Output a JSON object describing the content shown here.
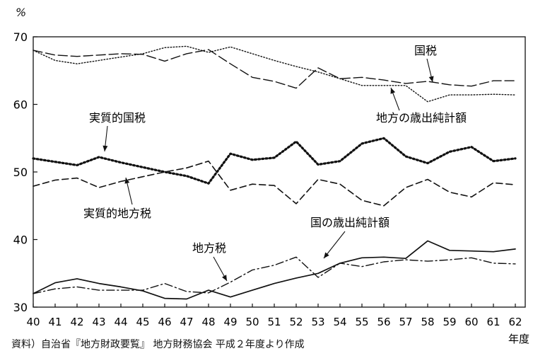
{
  "chart_data": {
    "type": "line",
    "y_unit": "%",
    "xlabel": "年度",
    "source": "資料）自治省『地方財政要覧』 地方財務協会 平成２年度より作成",
    "x": [
      40,
      41,
      42,
      43,
      44,
      45,
      46,
      47,
      48,
      49,
      50,
      51,
      52,
      53,
      54,
      55,
      56,
      57,
      58,
      59,
      60,
      61,
      62
    ],
    "ylim": [
      30,
      70
    ],
    "yticks": [
      30,
      40,
      50,
      60,
      70
    ],
    "series": [
      {
        "name": "国税",
        "style": "dotted-fine",
        "values": [
          68.0,
          66.5,
          66.0,
          66.5,
          67.0,
          67.5,
          68.4,
          68.6,
          67.7,
          68.5,
          67.5,
          66.5,
          65.6,
          64.8,
          63.8,
          62.8,
          62.8,
          62.8,
          60.4,
          61.4,
          61.4,
          61.5,
          61.4
        ]
      },
      {
        "name": "地方の歳出純計額",
        "style": "long-dash",
        "values": [
          68.0,
          67.3,
          67.1,
          67.3,
          67.5,
          67.4,
          66.4,
          67.5,
          68.1,
          66.0,
          64.0,
          63.4,
          62.4,
          65.4,
          63.8,
          64.0,
          63.6,
          63.1,
          63.4,
          62.9,
          62.7,
          63.5,
          63.5
        ]
      },
      {
        "name": "実質的国税",
        "style": "dotted-bold",
        "values": [
          52.0,
          51.5,
          51.0,
          52.2,
          51.4,
          50.7,
          50.0,
          49.4,
          48.3,
          52.7,
          51.8,
          52.1,
          54.5,
          51.1,
          51.6,
          54.2,
          55.0,
          52.3,
          51.3,
          53.0,
          53.7,
          51.6,
          52.0
        ]
      },
      {
        "name": "実質的地方税",
        "style": "dash",
        "values": [
          47.9,
          48.8,
          49.1,
          47.7,
          48.6,
          49.3,
          50.0,
          50.6,
          51.6,
          47.3,
          48.2,
          48.0,
          45.3,
          48.9,
          48.2,
          45.8,
          45.0,
          47.7,
          48.9,
          47.0,
          46.3,
          48.4,
          48.1
        ]
      },
      {
        "name": "地方税",
        "style": "dash-dot",
        "values": [
          32.0,
          32.7,
          33.0,
          32.5,
          32.5,
          32.5,
          33.5,
          32.3,
          32.1,
          33.7,
          35.5,
          36.2,
          37.4,
          34.4,
          36.5,
          36.0,
          36.7,
          37.0,
          36.8,
          37.0,
          37.3,
          36.5,
          36.4
        ]
      },
      {
        "name": "国の歳出純計額",
        "style": "solid",
        "values": [
          32.0,
          33.6,
          34.2,
          33.5,
          33.0,
          32.4,
          31.3,
          31.2,
          32.5,
          31.5,
          32.5,
          33.5,
          34.3,
          35.0,
          36.5,
          37.3,
          37.4,
          37.2,
          39.8,
          38.4,
          38.3,
          38.2,
          38.6
        ]
      }
    ],
    "annotations": [
      "国税",
      "地方の歳出純計額",
      "実質的国税",
      "実質的地方税",
      "地方税",
      "国の歳出純計額"
    ],
    "grid": false,
    "legend": "none"
  }
}
